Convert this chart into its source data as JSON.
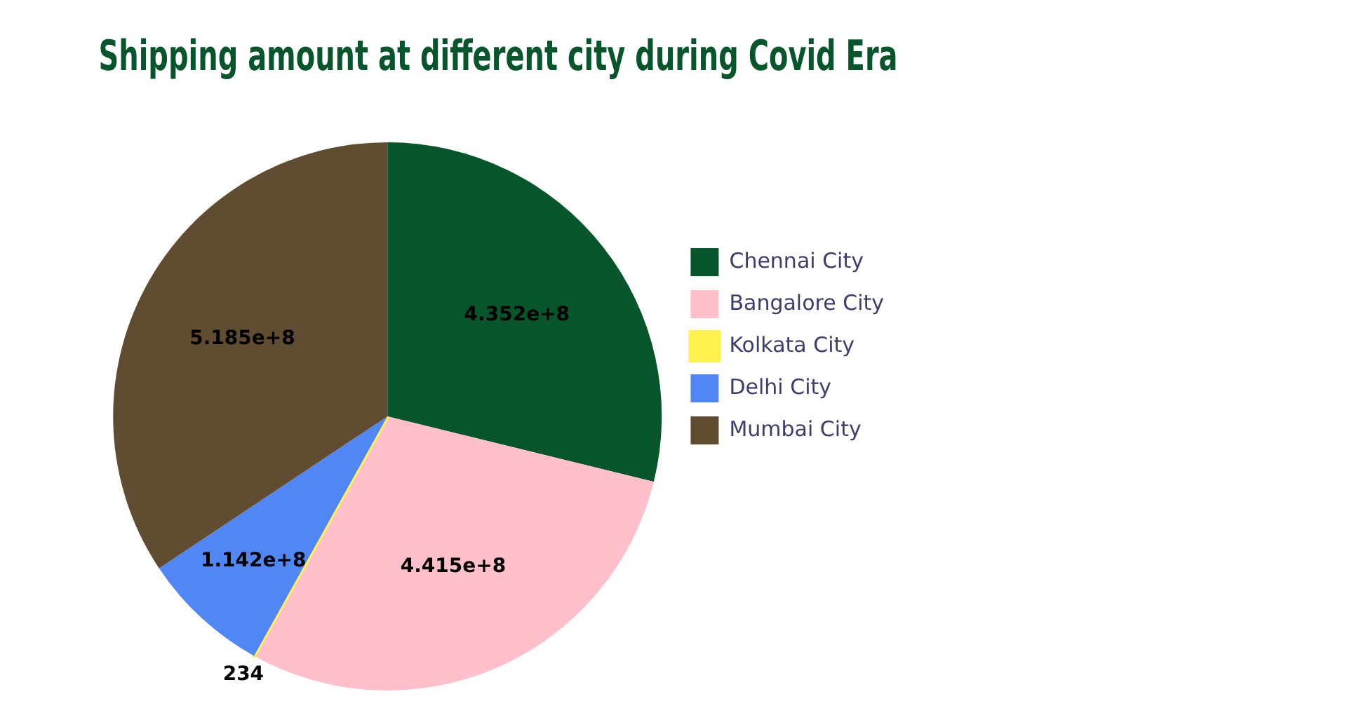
{
  "chart_data": {
    "type": "pie",
    "title": "Shipping amount at different city during Covid Era",
    "categories": [
      "Chennai City",
      "Bangalore City",
      "Kolkata City",
      "Delhi City",
      "Mumbai City"
    ],
    "values": [
      435200000,
      441500000,
      234,
      114200000,
      518500000
    ],
    "value_labels": [
      "4.352e+8",
      "4.415e+8",
      "234",
      "1.142e+8",
      "5.185e+8"
    ],
    "colors": [
      "#06552b",
      "#ffc0cb",
      "#fef250",
      "#5087f5",
      "#604c31"
    ],
    "legend": "right"
  }
}
